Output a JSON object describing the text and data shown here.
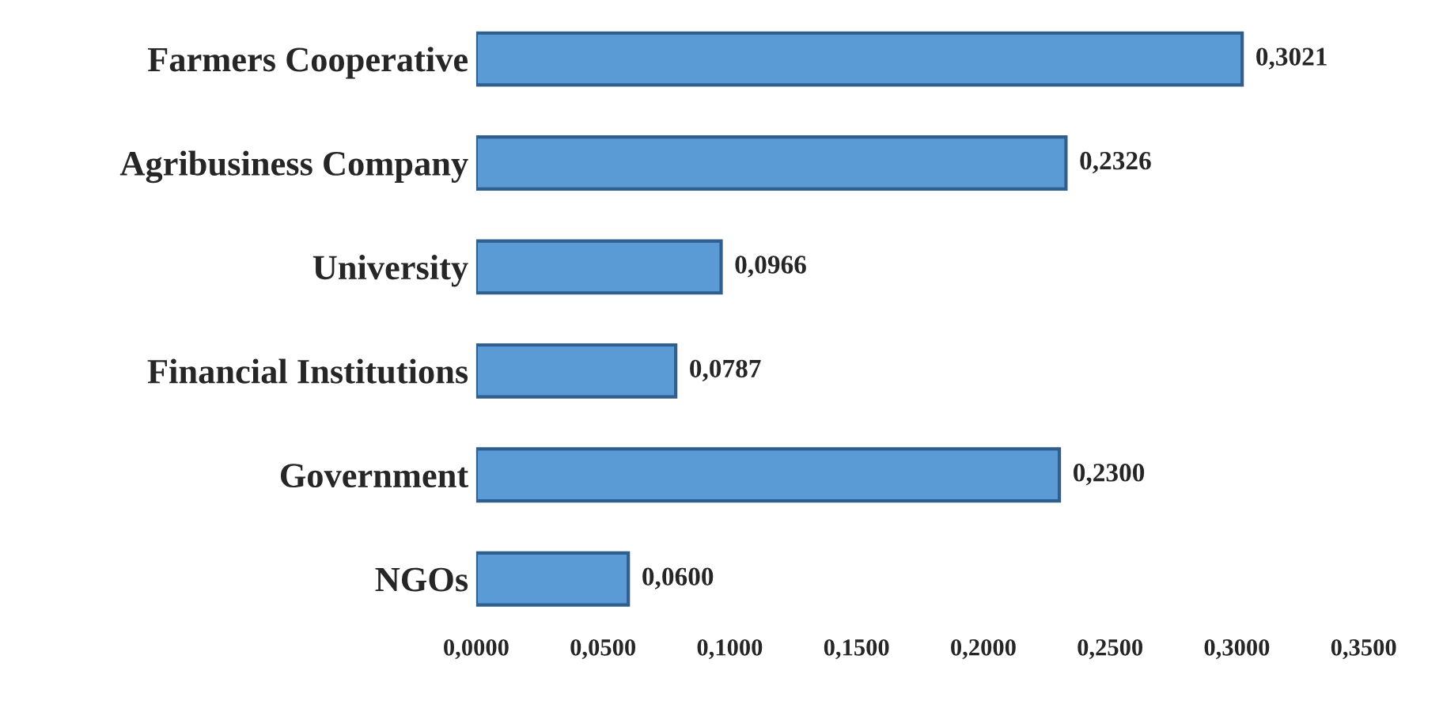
{
  "chart_data": {
    "type": "bar",
    "orientation": "horizontal",
    "categories": [
      "Farmers Cooperative",
      "Agribusiness Company",
      "University",
      "Financial Institutions",
      "Government",
      "NGOs"
    ],
    "values": [
      0.3021,
      0.2326,
      0.0966,
      0.0787,
      0.23,
      0.06
    ],
    "value_labels": [
      "0,3021",
      "0,2326",
      "0,0966",
      "0,0787",
      "0,2300",
      "0,0600"
    ],
    "color": "#5b9bd5",
    "xlim": [
      0,
      0.35
    ],
    "xticks": [
      {
        "value": 0,
        "label": "0,0000"
      },
      {
        "value": 0.05,
        "label": "0,0500"
      },
      {
        "value": 0.1,
        "label": "0,1000"
      },
      {
        "value": 0.15,
        "label": "0,1500"
      },
      {
        "value": 0.2,
        "label": "0,2000"
      },
      {
        "value": 0.25,
        "label": "0,2500"
      },
      {
        "value": 0.3,
        "label": "0,3000"
      },
      {
        "value": 0.35,
        "label": "0,3500"
      }
    ],
    "grid": false,
    "legend": false
  }
}
